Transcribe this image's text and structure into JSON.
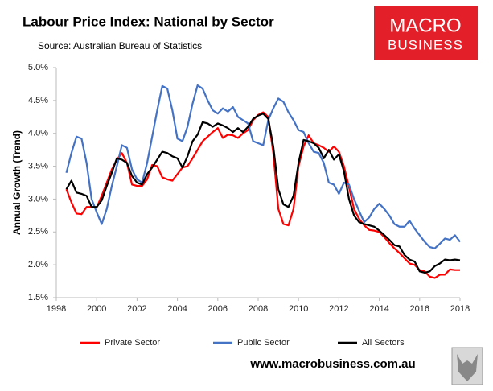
{
  "chart_data": {
    "type": "line",
    "title": "Labour Price Index: National by Sector",
    "subtitle": "Source: Australian Bureau of Statistics",
    "y_label": "Annual Growth (Trend)",
    "logo": [
      "MACRO",
      "BUSINESS"
    ],
    "footer": "www.macrobusiness.com.au",
    "x": [
      1998.5,
      1998.75,
      1999,
      1999.25,
      1999.5,
      1999.75,
      2000,
      2000.25,
      2000.5,
      2000.75,
      2001,
      2001.25,
      2001.5,
      2001.75,
      2002,
      2002.25,
      2002.5,
      2002.75,
      2003,
      2003.25,
      2003.5,
      2003.75,
      2004,
      2004.25,
      2004.5,
      2004.75,
      2005,
      2005.25,
      2005.5,
      2005.75,
      2006,
      2006.25,
      2006.5,
      2006.75,
      2007,
      2007.25,
      2007.5,
      2007.75,
      2008,
      2008.25,
      2008.5,
      2008.75,
      2009,
      2009.25,
      2009.5,
      2009.75,
      2010,
      2010.25,
      2010.5,
      2010.75,
      2011,
      2011.25,
      2011.5,
      2011.75,
      2012,
      2012.25,
      2012.5,
      2012.75,
      2013,
      2013.25,
      2013.5,
      2013.75,
      2014,
      2014.25,
      2014.5,
      2014.75,
      2015,
      2015.25,
      2015.5,
      2015.75,
      2016,
      2016.25,
      2016.5,
      2016.75,
      2017,
      2017.25,
      2017.5,
      2017.75,
      2018
    ],
    "series": [
      {
        "name": "Private Sector",
        "color": "#ff0000",
        "values": [
          3.15,
          2.95,
          2.78,
          2.77,
          2.88,
          2.88,
          2.87,
          3.05,
          3.25,
          3.45,
          3.6,
          3.7,
          3.55,
          3.22,
          3.2,
          3.2,
          3.3,
          3.52,
          3.5,
          3.33,
          3.3,
          3.28,
          3.38,
          3.48,
          3.5,
          3.62,
          3.75,
          3.88,
          3.95,
          4.02,
          4.08,
          3.93,
          3.98,
          3.97,
          3.93,
          4.0,
          4.05,
          4.2,
          4.28,
          4.32,
          4.25,
          3.7,
          2.85,
          2.62,
          2.6,
          2.85,
          3.5,
          3.8,
          3.97,
          3.85,
          3.82,
          3.78,
          3.72,
          3.8,
          3.72,
          3.5,
          3.18,
          2.85,
          2.7,
          2.6,
          2.53,
          2.52,
          2.5,
          2.42,
          2.33,
          2.25,
          2.18,
          2.1,
          2.02,
          2.0,
          1.92,
          1.9,
          1.82,
          1.8,
          1.85,
          1.85,
          1.93,
          1.92,
          1.92
        ]
      },
      {
        "name": "Public Sector",
        "color": "#4472c4",
        "values": [
          3.4,
          3.7,
          3.95,
          3.92,
          3.55,
          3.0,
          2.8,
          2.62,
          2.85,
          3.2,
          3.5,
          3.82,
          3.78,
          3.45,
          3.3,
          3.25,
          3.55,
          3.95,
          4.35,
          4.72,
          4.68,
          4.35,
          3.92,
          3.88,
          4.1,
          4.45,
          4.73,
          4.68,
          4.5,
          4.35,
          4.3,
          4.38,
          4.33,
          4.4,
          4.25,
          4.2,
          4.15,
          3.88,
          3.85,
          3.82,
          4.2,
          4.38,
          4.53,
          4.48,
          4.32,
          4.2,
          4.05,
          4.02,
          3.85,
          3.72,
          3.7,
          3.55,
          3.25,
          3.22,
          3.08,
          3.25,
          3.22,
          3.0,
          2.82,
          2.65,
          2.72,
          2.85,
          2.93,
          2.85,
          2.75,
          2.62,
          2.58,
          2.58,
          2.67,
          2.55,
          2.45,
          2.35,
          2.27,
          2.25,
          2.32,
          2.4,
          2.38,
          2.45,
          2.35
        ]
      },
      {
        "name": "All Sectors",
        "color": "#000000",
        "values": [
          3.15,
          3.28,
          3.1,
          3.08,
          3.05,
          2.88,
          2.88,
          2.98,
          3.2,
          3.4,
          3.62,
          3.6,
          3.55,
          3.35,
          3.25,
          3.22,
          3.38,
          3.48,
          3.6,
          3.72,
          3.7,
          3.65,
          3.62,
          3.48,
          3.65,
          3.88,
          3.98,
          4.17,
          4.15,
          4.1,
          4.15,
          4.12,
          4.08,
          4.02,
          4.08,
          4.02,
          4.1,
          4.22,
          4.27,
          4.3,
          4.22,
          3.8,
          3.15,
          2.92,
          2.88,
          3.05,
          3.55,
          3.9,
          3.88,
          3.85,
          3.78,
          3.62,
          3.75,
          3.6,
          3.68,
          3.42,
          3.0,
          2.75,
          2.65,
          2.62,
          2.6,
          2.58,
          2.52,
          2.45,
          2.38,
          2.3,
          2.28,
          2.15,
          2.08,
          2.05,
          1.9,
          1.88,
          1.9,
          1.98,
          2.02,
          2.08,
          2.07,
          2.08,
          2.07
        ]
      }
    ],
    "xlim": [
      1998,
      2018
    ],
    "xticks": [
      1998,
      2000,
      2002,
      2004,
      2006,
      2008,
      2010,
      2012,
      2014,
      2016,
      2018
    ],
    "ylim": [
      1.5,
      5.0
    ],
    "yticks": [
      {
        "value": 1.5,
        "label": "1.5%"
      },
      {
        "value": 2.0,
        "label": "2.0%"
      },
      {
        "value": 2.5,
        "label": "2.5%"
      },
      {
        "value": 3.0,
        "label": "3.0%"
      },
      {
        "value": 3.5,
        "label": "3.5%"
      },
      {
        "value": 4.0,
        "label": "4.0%"
      },
      {
        "value": 4.5,
        "label": "4.5%"
      },
      {
        "value": 5.0,
        "label": "5.0%"
      }
    ],
    "grid": false,
    "legend": "bottom"
  }
}
